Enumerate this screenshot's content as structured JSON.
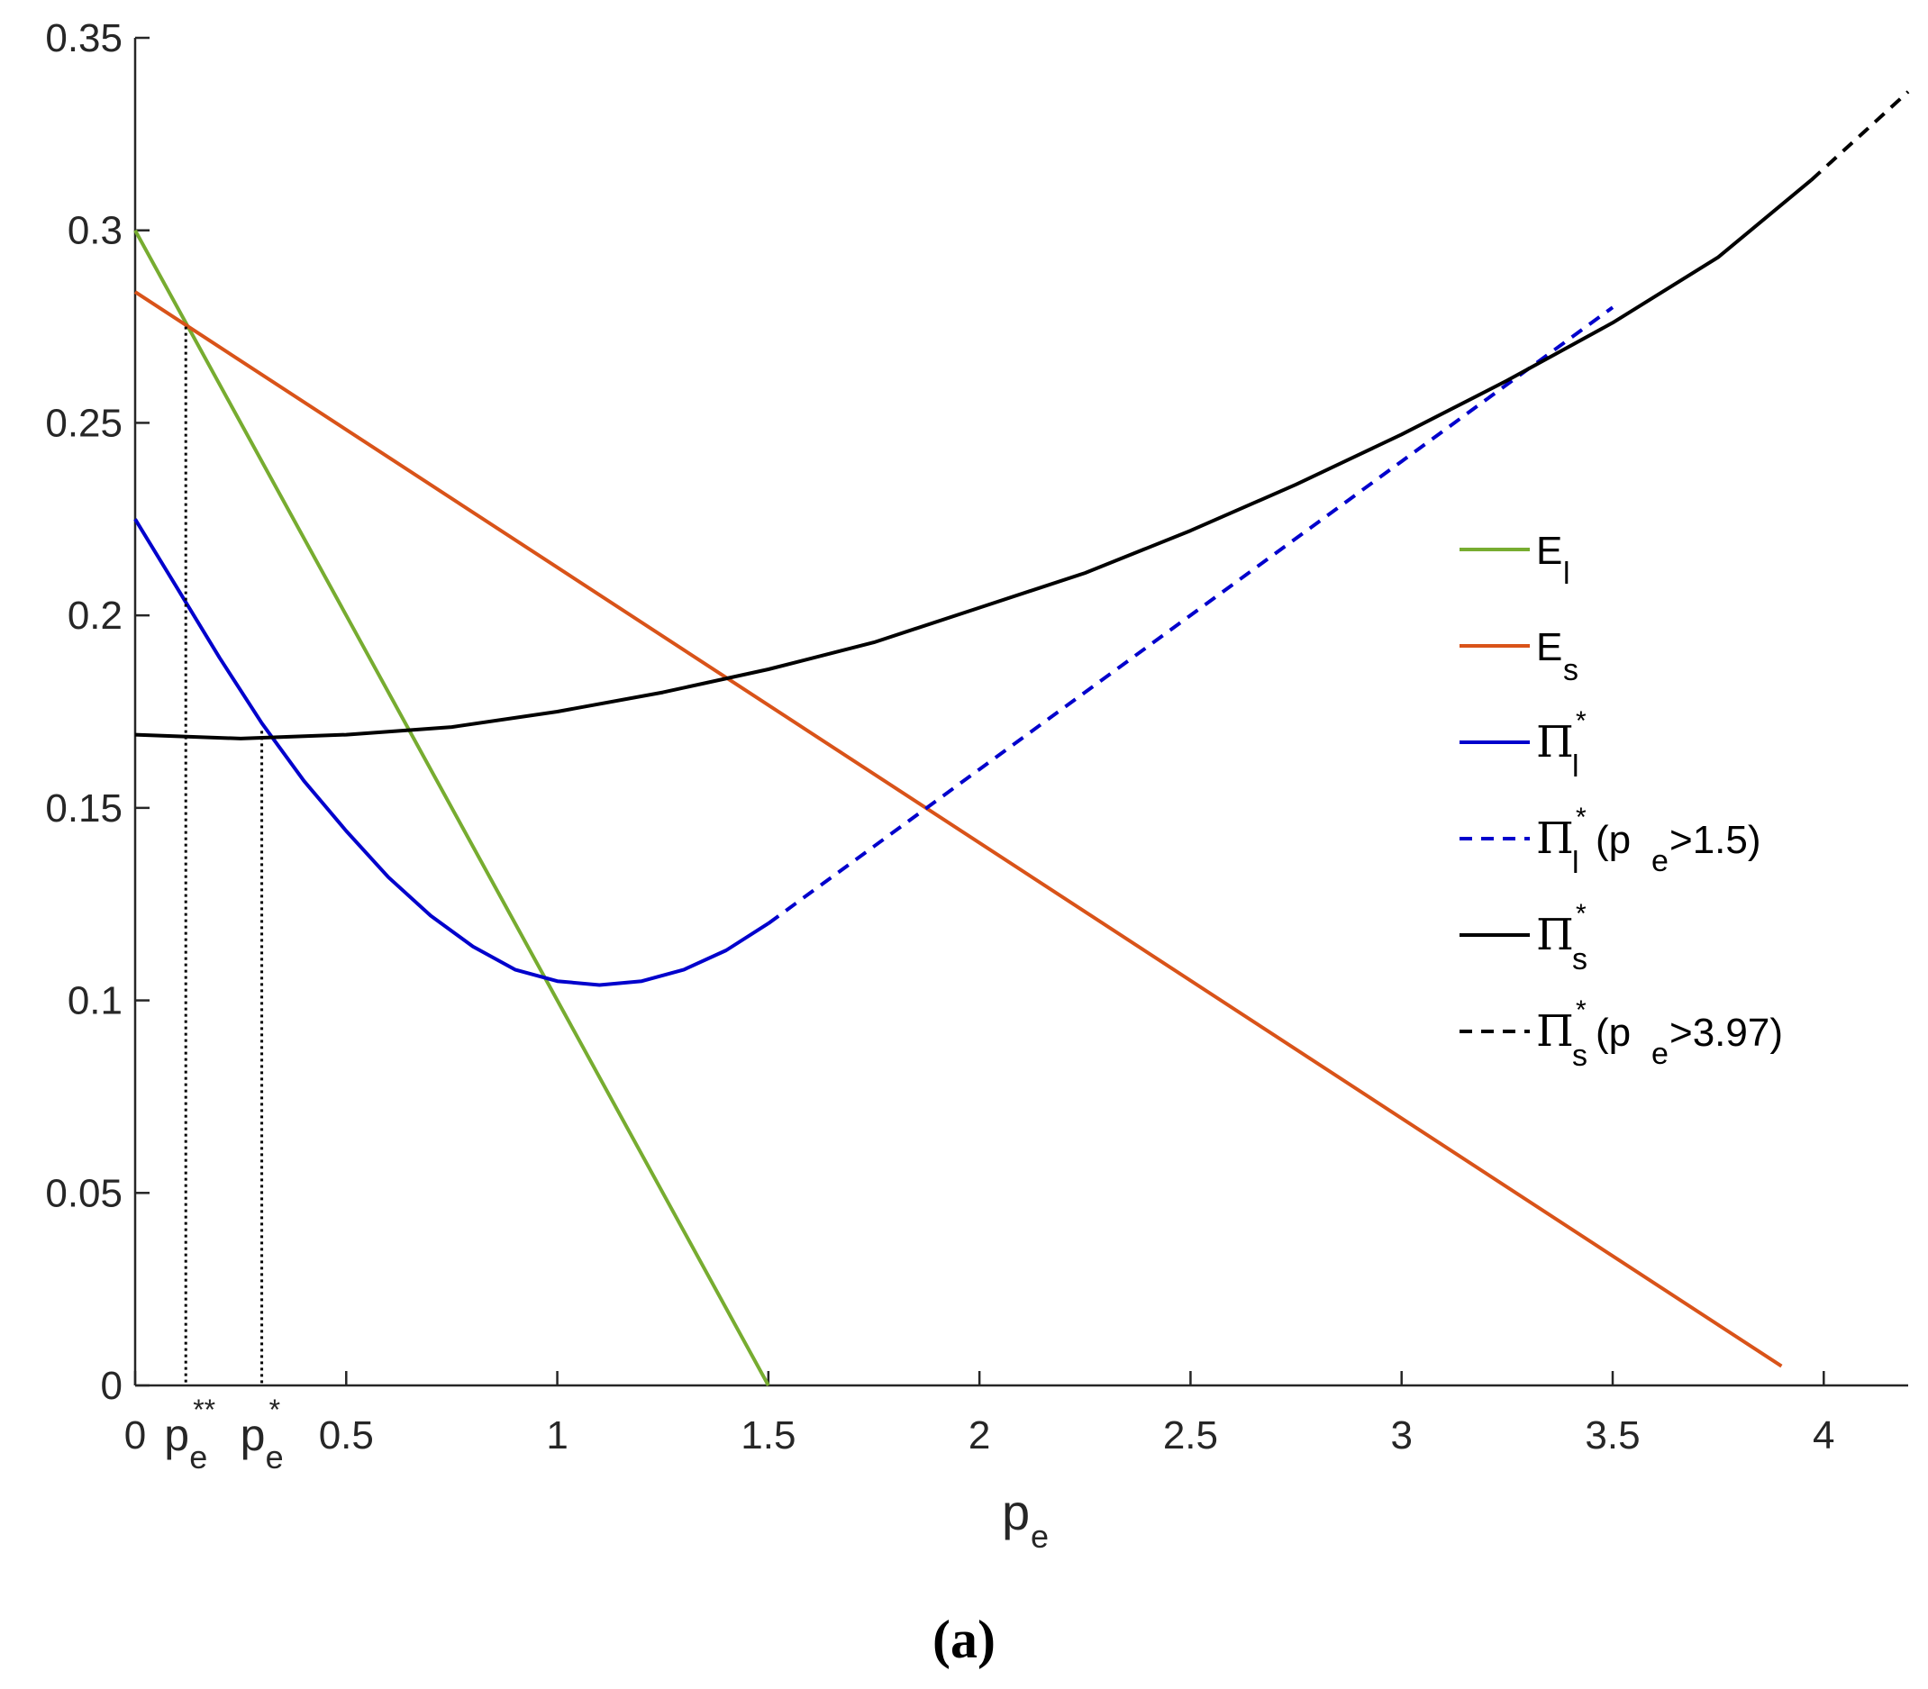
{
  "chart_data": {
    "type": "line",
    "xlabel_main": "p",
    "xlabel_sub": "e",
    "caption": "(a)",
    "xlim": [
      0,
      4.2
    ],
    "ylim": [
      0,
      0.35
    ],
    "xticks": [
      0,
      0.5,
      1,
      1.5,
      2,
      2.5,
      3,
      3.5,
      4
    ],
    "xtick_labels": [
      "0",
      "0.5",
      "1",
      "1.5",
      "2",
      "2.5",
      "3",
      "3.5",
      "4"
    ],
    "yticks": [
      0,
      0.05,
      0.1,
      0.15,
      0.2,
      0.25,
      0.3,
      0.35
    ],
    "ytick_labels": [
      "0",
      "0.05",
      "0.1",
      "0.15",
      "0.2",
      "0.25",
      "0.3",
      "0.35"
    ],
    "grid": false,
    "legend_position": "right",
    "colors": {
      "E_l": "#77AC30",
      "E_s": "#D95319",
      "Pi_l": "#0000CC",
      "Pi_s": "#000000"
    },
    "markers": [
      {
        "x": 0.12,
        "y_top": 0.275,
        "label_main": "p",
        "label_sub": "e",
        "label_sup": "**"
      },
      {
        "x": 0.3,
        "y_top": 0.17,
        "label_main": "p",
        "label_sub": "e",
        "label_sup": "*"
      }
    ],
    "series": [
      {
        "name": "E_l",
        "legend": {
          "main": "E",
          "sub": "l",
          "sup": "",
          "suffix": ""
        },
        "color": "#77AC30",
        "dash": "solid",
        "x": [
          0,
          1.5
        ],
        "y": [
          0.3,
          0
        ]
      },
      {
        "name": "E_s",
        "legend": {
          "main": "E",
          "sub": "s",
          "sup": "",
          "suffix": ""
        },
        "color": "#D95319",
        "dash": "solid",
        "x": [
          0,
          3.9
        ],
        "y": [
          0.284,
          0.005
        ]
      },
      {
        "name": "Pi_l*",
        "legend": {
          "main": "Π",
          "sub": "l",
          "sup": "*",
          "suffix": ""
        },
        "color": "#0000CC",
        "dash": "solid",
        "x": [
          0,
          0.1,
          0.2,
          0.3,
          0.4,
          0.5,
          0.6,
          0.7,
          0.8,
          0.9,
          1.0,
          1.1,
          1.2,
          1.3,
          1.4,
          1.5
        ],
        "y": [
          0.225,
          0.207,
          0.189,
          0.172,
          0.157,
          0.144,
          0.132,
          0.122,
          0.114,
          0.108,
          0.105,
          0.104,
          0.105,
          0.108,
          0.113,
          0.12
        ]
      },
      {
        "name": "Pi_l* (pe>1.5)",
        "legend": {
          "main": "Π",
          "sub": "l",
          "sup": "*",
          "suffix_open": " (p",
          "suffix_sub": "e",
          "suffix_close": ">1.5)"
        },
        "color": "#0000CC",
        "dash": "dashed",
        "x": [
          1.5,
          2.0,
          2.5,
          3.0,
          3.5
        ],
        "y": [
          0.12,
          0.16,
          0.2,
          0.24,
          0.28
        ]
      },
      {
        "name": "Pi_s*",
        "legend": {
          "main": "Π",
          "sub": "s",
          "sup": "*",
          "suffix": ""
        },
        "color": "#000000",
        "dash": "solid",
        "x": [
          0,
          0.25,
          0.5,
          0.75,
          1.0,
          1.25,
          1.5,
          1.75,
          2.0,
          2.25,
          2.5,
          2.75,
          3.0,
          3.25,
          3.5,
          3.75,
          3.97
        ],
        "y": [
          0.169,
          0.168,
          0.169,
          0.171,
          0.175,
          0.18,
          0.186,
          0.193,
          0.202,
          0.211,
          0.222,
          0.234,
          0.247,
          0.261,
          0.276,
          0.293,
          0.313
        ]
      },
      {
        "name": "Pi_s* (pe>3.97)",
        "legend": {
          "main": "Π",
          "sub": "s",
          "sup": "*",
          "suffix_open": " (p",
          "suffix_sub": "e",
          "suffix_close": ">3.97)"
        },
        "color": "#000000",
        "dash": "dashed",
        "x": [
          3.97,
          4.1,
          4.2
        ],
        "y": [
          0.313,
          0.326,
          0.336
        ]
      }
    ]
  }
}
